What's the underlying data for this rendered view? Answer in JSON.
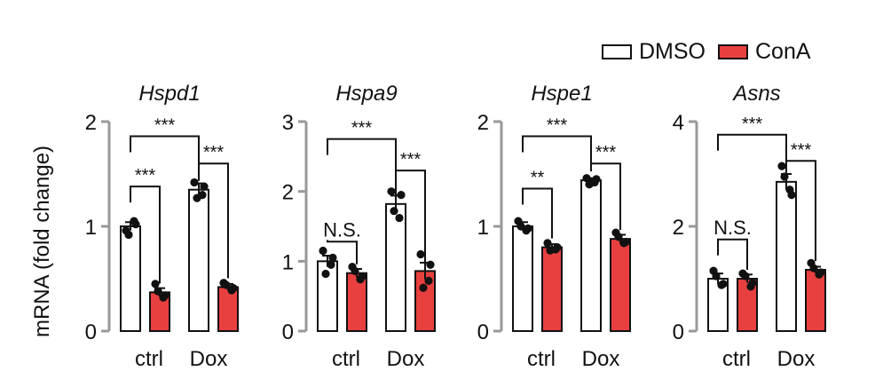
{
  "legend": {
    "dmso_label": "DMSO",
    "cona_label": "ConA",
    "colors": {
      "DMSO": "#ffffff",
      "ConA": "#e8403f"
    }
  },
  "y_axis_label": "mRNA (fold change)",
  "chart_data": [
    {
      "type": "bar",
      "title": "Hspd1",
      "categories": [
        "ctrl",
        "Dox"
      ],
      "ylim": [
        0,
        2
      ],
      "yticks": [
        0,
        1,
        2
      ],
      "series": [
        {
          "name": "DMSO",
          "values": [
            1.0,
            1.35
          ],
          "errors": [
            0.04,
            0.06
          ],
          "points": [
            [
              0.96,
              1.05,
              0.92,
              1.02
            ],
            [
              1.42,
              1.3,
              1.27,
              1.38
            ]
          ]
        },
        {
          "name": "ConA",
          "values": [
            0.37,
            0.42
          ],
          "errors": [
            0.04,
            0.03
          ],
          "points": [
            [
              0.45,
              0.32,
              0.38,
              0.34
            ],
            [
              0.46,
              0.39,
              0.44,
              0.41
            ]
          ]
        }
      ],
      "annotations": [
        {
          "from": [
            0,
            "DMSO"
          ],
          "to": [
            0,
            "ConA"
          ],
          "level": 1.38,
          "text": "***"
        },
        {
          "from": [
            1,
            "DMSO"
          ],
          "to": [
            1,
            "ConA"
          ],
          "level": 1.6,
          "text": "***"
        },
        {
          "from": [
            0,
            "DMSO"
          ],
          "to": [
            1,
            "DMSO"
          ],
          "level": 1.86,
          "text": "***"
        }
      ]
    },
    {
      "type": "bar",
      "title": "Hspa9",
      "categories": [
        "ctrl",
        "Dox"
      ],
      "ylim": [
        0,
        3
      ],
      "yticks": [
        0,
        1,
        2,
        3
      ],
      "series": [
        {
          "name": "DMSO",
          "values": [
            1.0,
            1.82
          ],
          "errors": [
            0.08,
            0.12
          ],
          "points": [
            [
              1.15,
              0.95,
              0.82,
              1.05
            ],
            [
              2.0,
              1.62,
              1.72,
              1.95
            ]
          ]
        },
        {
          "name": "ConA",
          "values": [
            0.83,
            0.86
          ],
          "errors": [
            0.06,
            0.12
          ],
          "points": [
            [
              0.92,
              0.74,
              0.86,
              0.78
            ],
            [
              1.1,
              0.72,
              0.62,
              0.95
            ]
          ]
        }
      ],
      "annotations": [
        {
          "from": [
            0,
            "DMSO"
          ],
          "to": [
            0,
            "ConA"
          ],
          "level": 1.28,
          "text": "N.S."
        },
        {
          "from": [
            1,
            "DMSO"
          ],
          "to": [
            1,
            "ConA"
          ],
          "level": 2.3,
          "text": "***"
        },
        {
          "from": [
            0,
            "DMSO"
          ],
          "to": [
            1,
            "DMSO"
          ],
          "level": 2.75,
          "text": "***"
        }
      ]
    },
    {
      "type": "bar",
      "title": "Hspe1",
      "categories": [
        "ctrl",
        "Dox"
      ],
      "ylim": [
        0,
        2
      ],
      "yticks": [
        0,
        1,
        2
      ],
      "series": [
        {
          "name": "DMSO",
          "values": [
            1.0,
            1.44
          ],
          "errors": [
            0.04,
            0.02
          ],
          "points": [
            [
              1.05,
              0.96,
              1.0,
              0.98
            ],
            [
              1.46,
              1.42,
              1.4,
              1.45
            ]
          ]
        },
        {
          "name": "ConA",
          "values": [
            0.8,
            0.88
          ],
          "errors": [
            0.03,
            0.04
          ],
          "points": [
            [
              0.84,
              0.78,
              0.77,
              0.8
            ],
            [
              0.94,
              0.84,
              0.9,
              0.85
            ]
          ]
        }
      ],
      "annotations": [
        {
          "from": [
            0,
            "DMSO"
          ],
          "to": [
            0,
            "ConA"
          ],
          "level": 1.36,
          "text": "**"
        },
        {
          "from": [
            1,
            "DMSO"
          ],
          "to": [
            1,
            "ConA"
          ],
          "level": 1.6,
          "text": "***"
        },
        {
          "from": [
            0,
            "DMSO"
          ],
          "to": [
            1,
            "DMSO"
          ],
          "level": 1.86,
          "text": "***"
        }
      ]
    },
    {
      "type": "bar",
      "title": "Asns",
      "categories": [
        "ctrl",
        "Dox"
      ],
      "ylim": [
        0,
        4
      ],
      "yticks": [
        0,
        2,
        4
      ],
      "series": [
        {
          "name": "DMSO",
          "values": [
            1.0,
            2.85
          ],
          "errors": [
            0.1,
            0.15
          ],
          "points": [
            [
              1.15,
              0.88,
              1.05,
              0.9
            ],
            [
              3.15,
              2.7,
              2.95,
              2.6
            ]
          ]
        },
        {
          "name": "ConA",
          "values": [
            1.0,
            1.17
          ],
          "errors": [
            0.08,
            0.06
          ],
          "points": [
            [
              1.1,
              0.85,
              1.05,
              0.92
            ],
            [
              1.3,
              1.08,
              1.2,
              1.12
            ]
          ]
        }
      ],
      "annotations": [
        {
          "from": [
            0,
            "DMSO"
          ],
          "to": [
            0,
            "ConA"
          ],
          "level": 1.75,
          "text": "N.S."
        },
        {
          "from": [
            1,
            "DMSO"
          ],
          "to": [
            1,
            "ConA"
          ],
          "level": 3.25,
          "text": "***"
        },
        {
          "from": [
            0,
            "DMSO"
          ],
          "to": [
            1,
            "DMSO"
          ],
          "level": 3.75,
          "text": "***"
        }
      ]
    }
  ]
}
